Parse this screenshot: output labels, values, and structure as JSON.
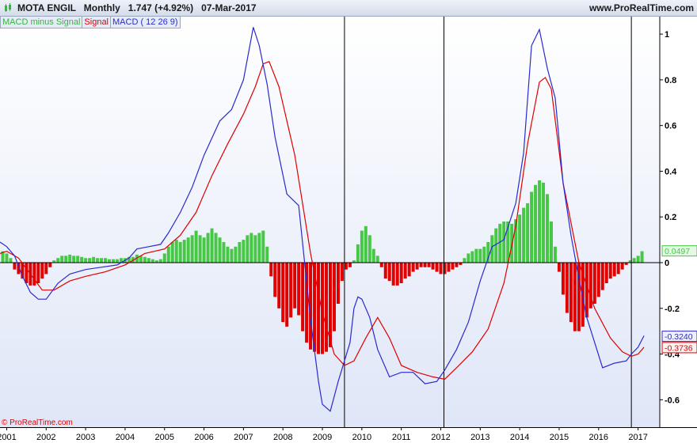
{
  "header": {
    "title": "MOTA ENGIL   Monthly   1.747 (+4.92%)   07-Mar-2017",
    "site": "www.ProRealTime.com"
  },
  "legend": {
    "hist_label": "MACD minus Signal",
    "signal_label": "Signal",
    "macd_label": "MACD ( 12 26 9)"
  },
  "copyright": "© ProRealTime.com",
  "colors": {
    "macd": "#2a2ad0",
    "signal": "#e00000",
    "hist_pos": "#46c846",
    "hist_neg": "#e00000",
    "bg_top": "#ffffff",
    "bg_bottom": "#dfe6f7"
  },
  "chart_data": {
    "type": "line",
    "ylim": [
      -0.72,
      1.08
    ],
    "xlim": [
      2000.83,
      2017.55
    ],
    "y_ticks": [
      1,
      0.8,
      0.6,
      0.4,
      0.2,
      0,
      -0.2,
      -0.4,
      -0.6
    ],
    "y_tick_labels": [
      "1",
      "0.8",
      "0.6",
      "0.4",
      "0.2",
      "0",
      "-0.2",
      "-0.4",
      "-0.6"
    ],
    "x_ticks": [
      2001,
      2002,
      2003,
      2004,
      2005,
      2006,
      2007,
      2008,
      2009,
      2010,
      2011,
      2012,
      2013,
      2014,
      2015,
      2016,
      2017
    ],
    "x_tick_labels": [
      "2001",
      "2002",
      "2003",
      "2004",
      "2005",
      "2006",
      "2007",
      "2008",
      "2009",
      "2010",
      "2011",
      "2012",
      "2013",
      "2014",
      "2015",
      "2016",
      "2017"
    ],
    "vertical_markers": [
      2009.56,
      2012.08,
      2016.83
    ],
    "last_values": [
      {
        "label": "0.0497",
        "value": 0.0497,
        "series": "hist"
      },
      {
        "label": "-0.3240",
        "value": -0.324,
        "series": "macd"
      },
      {
        "label": "-0.3736",
        "value": -0.3736,
        "series": "signal"
      }
    ],
    "series": [
      {
        "name": "MACD ( 12 26 9)",
        "x": [
          2000.83,
          2001.0,
          2001.2,
          2001.4,
          2001.6,
          2001.8,
          2002.0,
          2002.3,
          2002.6,
          2003.0,
          2003.4,
          2003.8,
          2004.1,
          2004.3,
          2004.6,
          2004.9,
          2005.1,
          2005.4,
          2005.7,
          2006.0,
          2006.4,
          2006.7,
          2007.0,
          2007.25,
          2007.4,
          2007.6,
          2007.8,
          2008.1,
          2008.4,
          2008.7,
          2008.9,
          2009.0,
          2009.2,
          2009.4,
          2009.56,
          2009.7,
          2009.8,
          2009.9,
          2010.0,
          2010.2,
          2010.4,
          2010.7,
          2011.0,
          2011.3,
          2011.6,
          2011.9,
          2012.1,
          2012.4,
          2012.7,
          2013.0,
          2013.3,
          2013.6,
          2013.9,
          2014.1,
          2014.3,
          2014.5,
          2014.7,
          2014.9,
          2015.1,
          2015.3,
          2015.5,
          2015.7,
          2015.9,
          2016.1,
          2016.4,
          2016.7,
          2016.83,
          2017.0,
          2017.15
        ],
        "values": [
          0.09,
          0.07,
          0.03,
          -0.06,
          -0.13,
          -0.16,
          -0.16,
          -0.09,
          -0.05,
          -0.03,
          -0.02,
          -0.01,
          0.02,
          0.06,
          0.07,
          0.08,
          0.13,
          0.22,
          0.33,
          0.47,
          0.62,
          0.67,
          0.8,
          1.03,
          0.95,
          0.78,
          0.55,
          0.3,
          0.25,
          -0.25,
          -0.52,
          -0.62,
          -0.65,
          -0.52,
          -0.43,
          -0.35,
          -0.2,
          -0.15,
          -0.16,
          -0.24,
          -0.38,
          -0.5,
          -0.48,
          -0.48,
          -0.53,
          -0.52,
          -0.47,
          -0.38,
          -0.26,
          -0.08,
          0.07,
          0.1,
          0.26,
          0.48,
          0.95,
          1.02,
          0.85,
          0.72,
          0.35,
          0.12,
          -0.07,
          -0.24,
          -0.35,
          -0.46,
          -0.44,
          -0.43,
          -0.4,
          -0.37,
          -0.32
        ]
      },
      {
        "name": "Signal",
        "x": [
          2000.83,
          2001.0,
          2001.3,
          2001.6,
          2001.9,
          2002.2,
          2002.6,
          2003.0,
          2003.5,
          2004.0,
          2004.5,
          2005.0,
          2005.4,
          2005.8,
          2006.2,
          2006.6,
          2007.0,
          2007.3,
          2007.5,
          2007.65,
          2007.9,
          2008.3,
          2008.7,
          2009.0,
          2009.3,
          2009.56,
          2009.8,
          2010.1,
          2010.4,
          2010.7,
          2011.0,
          2011.4,
          2011.8,
          2012.1,
          2012.4,
          2012.8,
          2013.2,
          2013.6,
          2013.9,
          2014.2,
          2014.5,
          2014.65,
          2014.8,
          2015.1,
          2015.5,
          2015.9,
          2016.3,
          2016.6,
          2016.83,
          2017.0,
          2017.15
        ],
        "values": [
          0.04,
          0.05,
          0.02,
          -0.05,
          -0.12,
          -0.12,
          -0.08,
          -0.06,
          -0.04,
          -0.01,
          0.04,
          0.06,
          0.12,
          0.22,
          0.38,
          0.52,
          0.65,
          0.77,
          0.87,
          0.88,
          0.77,
          0.47,
          0.04,
          -0.22,
          -0.4,
          -0.45,
          -0.43,
          -0.33,
          -0.24,
          -0.33,
          -0.45,
          -0.48,
          -0.5,
          -0.51,
          -0.46,
          -0.39,
          -0.29,
          -0.09,
          0.16,
          0.52,
          0.79,
          0.81,
          0.76,
          0.35,
          0.0,
          -0.2,
          -0.33,
          -0.39,
          -0.41,
          -0.4,
          -0.37
        ]
      },
      {
        "name": "MACD minus Signal",
        "x": [
          2000.9,
          2001.0,
          2001.1,
          2001.2,
          2001.3,
          2001.4,
          2001.5,
          2001.6,
          2001.7,
          2001.8,
          2001.9,
          2002.0,
          2002.1,
          2002.2,
          2002.3,
          2002.4,
          2002.5,
          2002.6,
          2002.7,
          2002.8,
          2002.9,
          2003.0,
          2003.1,
          2003.2,
          2003.3,
          2003.4,
          2003.5,
          2003.6,
          2003.7,
          2003.8,
          2003.9,
          2004.0,
          2004.1,
          2004.2,
          2004.3,
          2004.4,
          2004.5,
          2004.6,
          2004.7,
          2004.8,
          2004.9,
          2005.0,
          2005.1,
          2005.2,
          2005.3,
          2005.4,
          2005.5,
          2005.6,
          2005.7,
          2005.8,
          2005.9,
          2006.0,
          2006.1,
          2006.2,
          2006.3,
          2006.4,
          2006.5,
          2006.6,
          2006.7,
          2006.8,
          2006.9,
          2007.0,
          2007.1,
          2007.2,
          2007.3,
          2007.4,
          2007.5,
          2007.6,
          2007.7,
          2007.8,
          2007.9,
          2008.0,
          2008.1,
          2008.2,
          2008.3,
          2008.4,
          2008.5,
          2008.6,
          2008.7,
          2008.8,
          2008.9,
          2009.0,
          2009.1,
          2009.2,
          2009.3,
          2009.4,
          2009.5,
          2009.6,
          2009.7,
          2009.8,
          2009.9,
          2010.0,
          2010.1,
          2010.2,
          2010.3,
          2010.4,
          2010.5,
          2010.6,
          2010.7,
          2010.8,
          2010.9,
          2011.0,
          2011.1,
          2011.2,
          2011.3,
          2011.4,
          2011.5,
          2011.6,
          2011.7,
          2011.8,
          2011.9,
          2012.0,
          2012.1,
          2012.2,
          2012.3,
          2012.4,
          2012.5,
          2012.6,
          2012.7,
          2012.8,
          2012.9,
          2013.0,
          2013.1,
          2013.2,
          2013.3,
          2013.4,
          2013.5,
          2013.6,
          2013.7,
          2013.8,
          2013.9,
          2014.0,
          2014.1,
          2014.2,
          2014.3,
          2014.4,
          2014.5,
          2014.6,
          2014.7,
          2014.8,
          2014.9,
          2015.0,
          2015.1,
          2015.2,
          2015.3,
          2015.4,
          2015.5,
          2015.6,
          2015.7,
          2015.8,
          2015.9,
          2016.0,
          2016.1,
          2016.2,
          2016.3,
          2016.4,
          2016.5,
          2016.6,
          2016.7,
          2016.8,
          2016.9,
          2017.0,
          2017.1
        ],
        "values": [
          0.05,
          0.04,
          0.02,
          -0.03,
          -0.05,
          -0.07,
          -0.09,
          -0.1,
          -0.1,
          -0.09,
          -0.07,
          -0.05,
          -0.02,
          0.01,
          0.02,
          0.03,
          0.03,
          0.035,
          0.03,
          0.03,
          0.025,
          0.02,
          0.02,
          0.025,
          0.02,
          0.02,
          0.02,
          0.015,
          0.015,
          0.015,
          0.02,
          0.02,
          0.025,
          0.025,
          0.035,
          0.03,
          0.025,
          0.02,
          0.015,
          0.01,
          0.015,
          0.04,
          0.07,
          0.09,
          0.1,
          0.09,
          0.1,
          0.11,
          0.12,
          0.14,
          0.12,
          0.11,
          0.13,
          0.15,
          0.13,
          0.11,
          0.09,
          0.07,
          0.06,
          0.07,
          0.09,
          0.1,
          0.12,
          0.13,
          0.12,
          0.13,
          0.14,
          0.07,
          -0.06,
          -0.15,
          -0.2,
          -0.26,
          -0.28,
          -0.24,
          -0.2,
          -0.23,
          -0.3,
          -0.35,
          -0.38,
          -0.39,
          -0.4,
          -0.4,
          -0.39,
          -0.37,
          -0.3,
          -0.18,
          -0.08,
          -0.03,
          -0.02,
          0.01,
          0.08,
          0.14,
          0.16,
          0.12,
          0.06,
          0.03,
          -0.02,
          -0.07,
          -0.08,
          -0.1,
          -0.1,
          -0.09,
          -0.07,
          -0.06,
          -0.04,
          -0.03,
          -0.02,
          -0.02,
          -0.02,
          -0.03,
          -0.04,
          -0.05,
          -0.05,
          -0.04,
          -0.03,
          -0.02,
          -0.01,
          0.02,
          0.04,
          0.05,
          0.06,
          0.06,
          0.07,
          0.09,
          0.12,
          0.15,
          0.17,
          0.18,
          0.18,
          0.17,
          0.19,
          0.21,
          0.24,
          0.26,
          0.31,
          0.34,
          0.36,
          0.35,
          0.3,
          0.18,
          0.07,
          -0.04,
          -0.14,
          -0.22,
          -0.26,
          -0.3,
          -0.3,
          -0.28,
          -0.24,
          -0.2,
          -0.18,
          -0.15,
          -0.12,
          -0.09,
          -0.07,
          -0.06,
          -0.05,
          -0.03,
          -0.01,
          0.01,
          0.02,
          0.03,
          0.05
        ]
      }
    ]
  }
}
